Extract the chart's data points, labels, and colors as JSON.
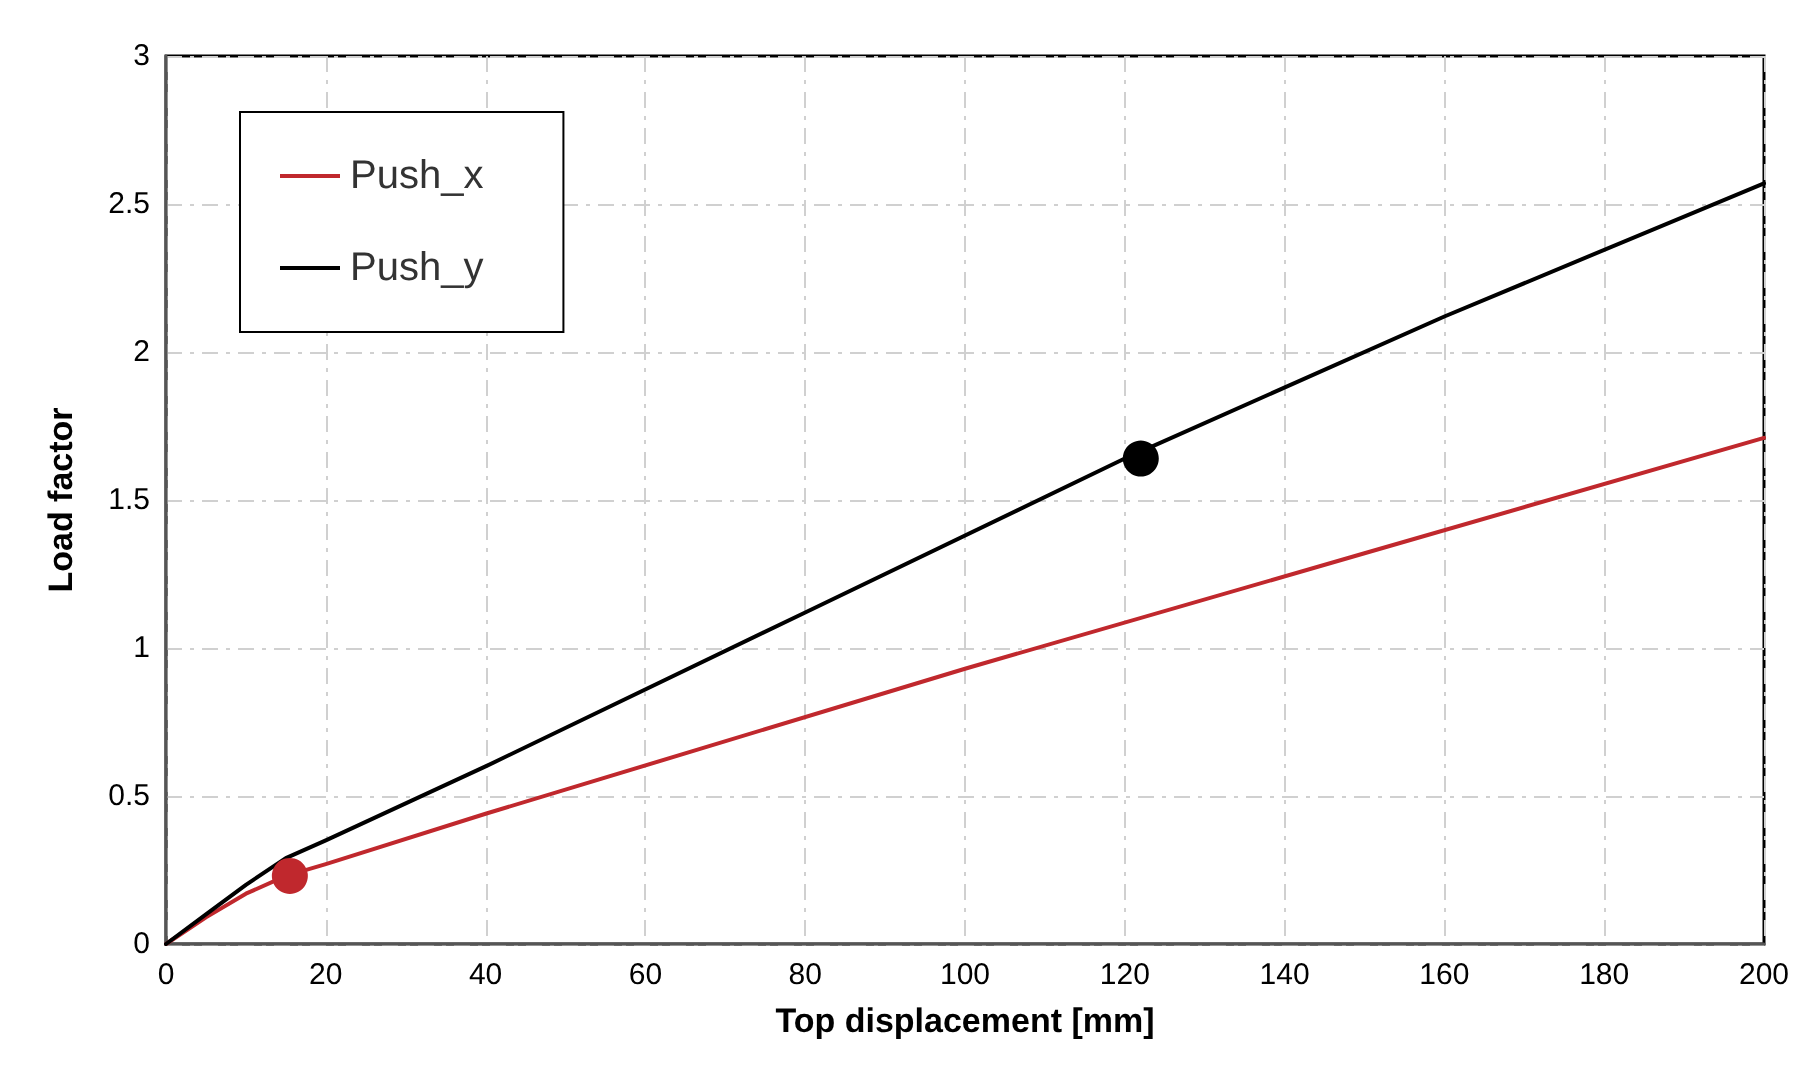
{
  "chart_data": {
    "type": "line",
    "xlabel": "Top displacement [mm]",
    "ylabel": "Load factor",
    "xlim": [
      0,
      200
    ],
    "xticks": [
      0,
      20,
      40,
      60,
      80,
      100,
      120,
      140,
      160,
      180,
      200
    ],
    "ylim": [
      0,
      3
    ],
    "yticks": [
      0,
      0.5,
      1,
      1.5,
      2,
      2.5,
      3
    ],
    "grid": true,
    "legend": "top left",
    "marker": "none",
    "line_style": "solid",
    "series": [
      {
        "name": "Push_x",
        "color": "#c0282d",
        "x": [
          0,
          5,
          10,
          15,
          20,
          40,
          100,
          150,
          200
        ],
        "values": [
          0,
          0.09,
          0.17,
          0.23,
          0.27,
          0.44,
          0.93,
          1.32,
          1.71
        ]
      },
      {
        "name": "Push_y",
        "color": "#000000",
        "x": [
          0,
          5,
          10,
          15,
          20,
          40,
          80,
          120,
          160,
          200
        ],
        "values": [
          0,
          0.1,
          0.2,
          0.29,
          0.35,
          0.6,
          1.12,
          1.64,
          2.12,
          2.57
        ]
      },
      {
        "type": "scatter",
        "marker": "circle",
        "color": "#c0282d",
        "x": [
          15.5
        ],
        "values": [
          0.23
        ]
      },
      {
        "type": "scatter",
        "marker": "circle",
        "color": "#000000",
        "x": [
          122
        ],
        "values": [
          1.64
        ]
      }
    ]
  }
}
